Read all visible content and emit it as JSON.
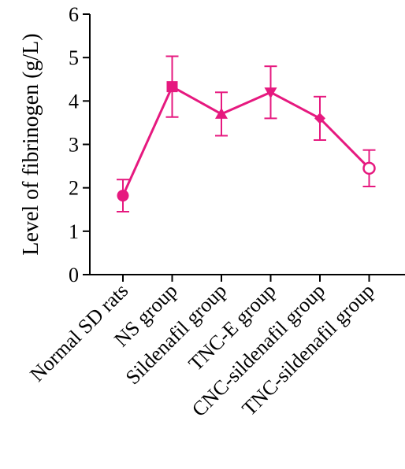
{
  "chart_data": {
    "type": "line",
    "ylabel": "Level of fibrinogen (g/L)",
    "xlabel": "",
    "ylim": [
      0,
      6
    ],
    "yticks": [
      0,
      1,
      2,
      3,
      4,
      5,
      6
    ],
    "categories": [
      "Normal SD rats",
      "NS group",
      "Sildenafil group",
      "TNC-E group",
      "CNC-sildenafil group",
      "TNC-sildenafil group"
    ],
    "series": [
      {
        "color": "#e6197f",
        "values": [
          1.82,
          4.33,
          3.7,
          4.2,
          3.6,
          2.45
        ],
        "error": [
          0.37,
          0.7,
          0.5,
          0.6,
          0.5,
          0.42
        ],
        "markers": [
          "circle",
          "square",
          "triangle-up",
          "triangle-down",
          "diamond",
          "circle-open"
        ]
      }
    ],
    "grid": false,
    "legend": "none"
  }
}
